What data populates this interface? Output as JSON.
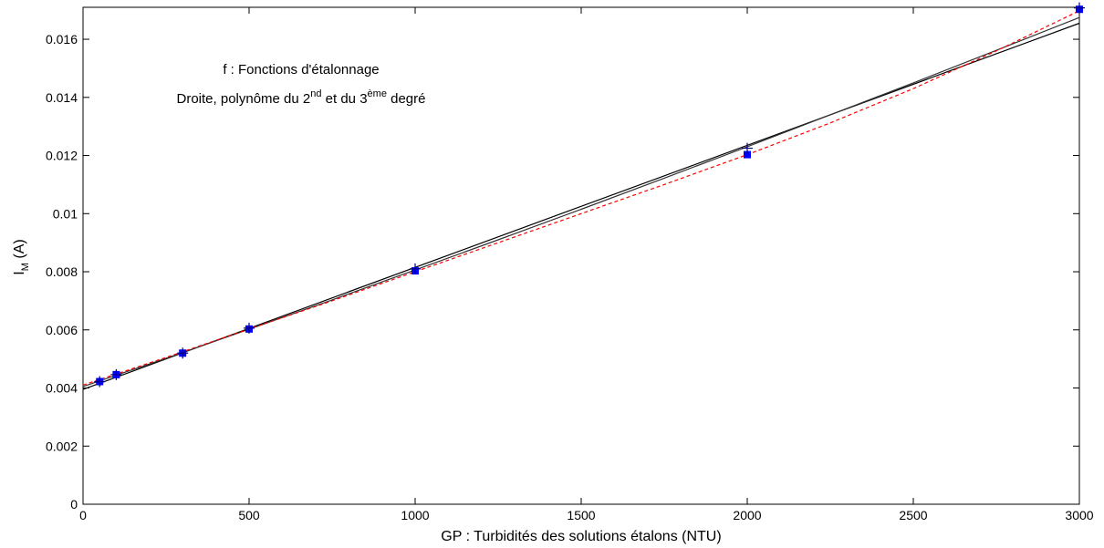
{
  "chart_data": {
    "type": "line",
    "title": "",
    "annotation": {
      "line1": "f : Fonctions d'étalonnage",
      "line2_prefix": "Droite, polynôme du 2",
      "line2_sup1": "nd",
      "line2_middle": " et du 3",
      "line2_sup2": "ème",
      "line2_suffix": " degré"
    },
    "xlabel": "GP : Turbidités des solutions étalons (NTU)",
    "ylabel_main": "I",
    "ylabel_sub": "M",
    "ylabel_unit": " (A)",
    "xlim": [
      0,
      3000
    ],
    "ylim": [
      0,
      0.0171
    ],
    "xticks": [
      0,
      500,
      1000,
      1500,
      2000,
      2500,
      3000
    ],
    "xtick_labels": [
      "0",
      "500",
      "1000",
      "1500",
      "2000",
      "2500",
      "3000"
    ],
    "yticks": [
      0,
      0.002,
      0.004,
      0.006,
      0.008,
      0.01,
      0.012,
      0.014,
      0.016
    ],
    "ytick_labels": [
      "0",
      "0.002",
      "0.004",
      "0.006",
      "0.008",
      "0.01",
      "0.012",
      "0.014",
      "0.016"
    ],
    "grid": false,
    "series": [
      {
        "style": "markers",
        "marker": "square",
        "color": "#0000ff",
        "x": [
          50,
          100,
          300,
          500,
          1000,
          2000,
          3000
        ],
        "y": [
          0.00422,
          0.00446,
          0.0052,
          0.00603,
          0.00803,
          0.01203,
          0.01703
        ]
      },
      {
        "style": "markers",
        "marker": "plus",
        "color": "#000080",
        "x": [
          50,
          100,
          300,
          500,
          1000,
          2000,
          3000
        ],
        "y": [
          0.00422,
          0.00446,
          0.0052,
          0.00606,
          0.0081,
          0.01225,
          0.01708
        ]
      },
      {
        "style": "line",
        "color": "#000000",
        "dashed": false,
        "x": [
          0,
          3000
        ],
        "y": [
          0.00395,
          0.01655
        ]
      },
      {
        "style": "line",
        "color": "#333333",
        "dashed": false,
        "x": [
          0,
          250,
          500,
          750,
          1000,
          1250,
          1500,
          1750,
          2000,
          2250,
          2500,
          2750,
          3000
        ],
        "y": [
          0.00405,
          0.00502,
          0.00602,
          0.00703,
          0.00806,
          0.0091,
          0.01015,
          0.01122,
          0.0123,
          0.0134,
          0.0145,
          0.01562,
          0.01675
        ]
      },
      {
        "style": "line",
        "color": "#ff0000",
        "dashed": true,
        "x": [
          0,
          250,
          500,
          750,
          1000,
          1250,
          1500,
          1750,
          2000,
          2250,
          2500,
          2750,
          3000
        ],
        "y": [
          0.0041,
          0.00505,
          0.00603,
          0.007,
          0.008,
          0.009,
          0.01,
          0.011,
          0.01203,
          0.01312,
          0.0143,
          0.0156,
          0.01698
        ]
      }
    ]
  }
}
